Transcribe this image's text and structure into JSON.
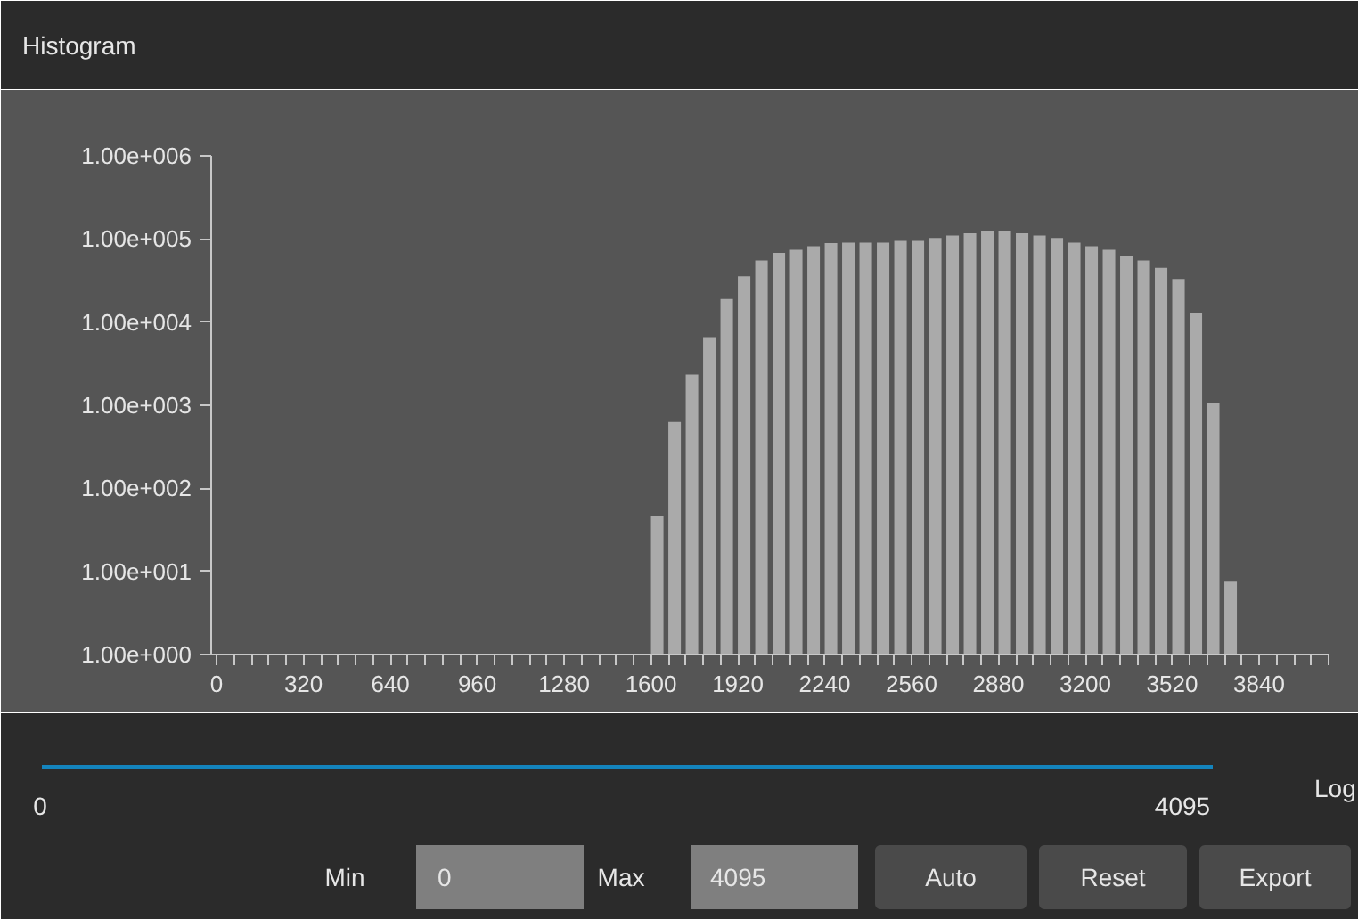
{
  "chart_data": {
    "type": "histogram",
    "title": "Histogram",
    "bins": [
      1600,
      1664,
      1728,
      1792,
      1856,
      1920,
      1984,
      2048,
      2112,
      2176,
      2240,
      2304,
      2368,
      2432,
      2496,
      2560,
      2624,
      2688,
      2752,
      2816,
      2880,
      2944,
      3008,
      3072,
      3136,
      3200,
      3264,
      3328,
      3392,
      3456,
      3520,
      3584,
      3648,
      3712,
      3776
    ],
    "values": [
      46,
      630,
      2340,
      6600,
      19000,
      35500,
      55000,
      68000,
      74000,
      82000,
      89000,
      90000,
      90000,
      90000,
      95000,
      95000,
      103000,
      110000,
      117000,
      126000,
      126000,
      117000,
      110000,
      103000,
      90000,
      82000,
      74000,
      63000,
      55000,
      45000,
      33000,
      13000,
      1070,
      7.5
    ],
    "color": "#aaaaaa",
    "log": true,
    "xlim": [
      -20,
      4096
    ],
    "ylim": [
      1,
      1000000
    ],
    "yticks": [
      {
        "value": 1,
        "label": "1.00e+000"
      },
      {
        "value": 10,
        "label": "1.00e+001"
      },
      {
        "value": 100,
        "label": "1.00e+002"
      },
      {
        "value": 1000,
        "label": "1.00e+003"
      },
      {
        "value": 10000,
        "label": "1.00e+004"
      },
      {
        "value": 100000,
        "label": "1.00e+005"
      },
      {
        "value": 1000000,
        "label": "1.00e+006"
      }
    ],
    "xticks": [
      0,
      {
        "value": 64,
        "label": null
      },
      {
        "value": 128,
        "label": null
      },
      {
        "value": 192,
        "label": null
      },
      {
        "value": 256,
        "label": null
      },
      320,
      {
        "value": 384,
        "label": null
      },
      {
        "value": 448,
        "label": null
      },
      {
        "value": 512,
        "label": null
      },
      {
        "value": 576,
        "label": null
      },
      640,
      {
        "value": 704,
        "label": null
      },
      {
        "value": 768,
        "label": null
      },
      {
        "value": 832,
        "label": null
      },
      {
        "value": 896,
        "label": null
      },
      960,
      {
        "value": 1024,
        "label": null
      },
      {
        "value": 1088,
        "label": null
      },
      {
        "value": 1152,
        "label": null
      },
      {
        "value": 1216,
        "label": null
      },
      1280,
      {
        "value": 1344,
        "label": null
      },
      {
        "value": 1408,
        "label": null
      },
      {
        "value": 1472,
        "label": null
      },
      {
        "value": 1536,
        "label": null
      },
      1600,
      {
        "value": 1664,
        "label": null
      },
      {
        "value": 1728,
        "label": null
      },
      {
        "value": 1792,
        "label": null
      },
      {
        "value": 1856,
        "label": null
      },
      1920,
      {
        "value": 1984,
        "label": null
      },
      {
        "value": 2048,
        "label": null
      },
      {
        "value": 2112,
        "label": null
      },
      {
        "value": 2176,
        "label": null
      },
      2240,
      {
        "value": 2304,
        "label": null
      },
      {
        "value": 2368,
        "label": null
      },
      {
        "value": 2432,
        "label": null
      },
      {
        "value": 2496,
        "label": null
      },
      2560,
      {
        "value": 2624,
        "label": null
      },
      {
        "value": 2688,
        "label": null
      },
      {
        "value": 2752,
        "label": null
      },
      {
        "value": 2816,
        "label": null
      },
      2880,
      {
        "value": 2944,
        "label": null
      },
      {
        "value": 3008,
        "label": null
      },
      {
        "value": 3072,
        "label": null
      },
      {
        "value": 3136,
        "label": null
      },
      3200,
      {
        "value": 3264,
        "label": null
      },
      {
        "value": 3328,
        "label": null
      },
      {
        "value": 3392,
        "label": null
      },
      {
        "value": 3456,
        "label": null
      },
      3520,
      {
        "value": 3584,
        "label": null
      },
      {
        "value": 3648,
        "label": null
      },
      {
        "value": 3712,
        "label": null
      },
      {
        "value": 3776,
        "label": null
      },
      3840,
      {
        "value": 3904,
        "label": null
      },
      {
        "value": 3968,
        "label": null
      },
      {
        "value": 4032,
        "label": null
      },
      {
        "value": 4096,
        "label": null
      }
    ],
    "annotations": [
      "0",
      "4095",
      "Log",
      "Min",
      "0",
      "Max",
      "4095",
      "Auto",
      "Reset",
      "Export"
    ]
  }
}
